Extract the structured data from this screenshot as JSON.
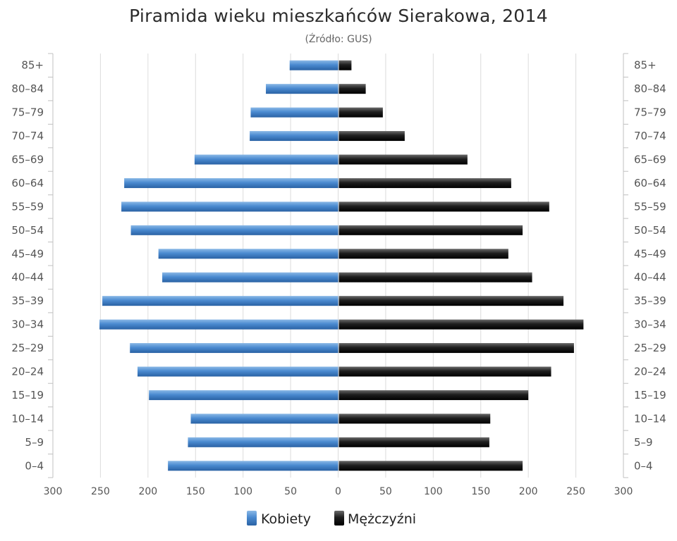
{
  "chart_data": {
    "type": "bar",
    "orientation": "horizontal-mirrored",
    "title": "Piramida wieku mieszkańców Sierakowa, 2014",
    "subtitle": "(Źródło: GUS)",
    "categories": [
      "0–4",
      "5–9",
      "10–14",
      "15–19",
      "20–24",
      "25–29",
      "30–34",
      "35–39",
      "40–44",
      "45–49",
      "50–54",
      "55–59",
      "60–64",
      "65–69",
      "70–74",
      "75–79",
      "80–84",
      "85+"
    ],
    "series": [
      {
        "name": "Kobiety",
        "color": "#3a78be",
        "side": "left",
        "values": [
          179,
          158,
          155,
          199,
          211,
          219,
          251,
          248,
          185,
          189,
          218,
          228,
          225,
          151,
          93,
          92,
          76,
          51
        ]
      },
      {
        "name": "Mężczyźni",
        "color": "#151515",
        "side": "right",
        "values": [
          194,
          159,
          160,
          200,
          224,
          248,
          258,
          237,
          204,
          179,
          194,
          222,
          182,
          136,
          70,
          47,
          29,
          14
        ]
      }
    ],
    "xlim": [
      -300,
      300
    ],
    "xticks": [
      -300,
      -250,
      -200,
      -150,
      -100,
      -50,
      0,
      50,
      100,
      150,
      200,
      250,
      300
    ],
    "xtick_labels": [
      "300",
      "250",
      "200",
      "150",
      "100",
      "50",
      "0",
      "50",
      "100",
      "150",
      "200",
      "250",
      "300"
    ],
    "grid": true,
    "legend": "bottom-center"
  }
}
